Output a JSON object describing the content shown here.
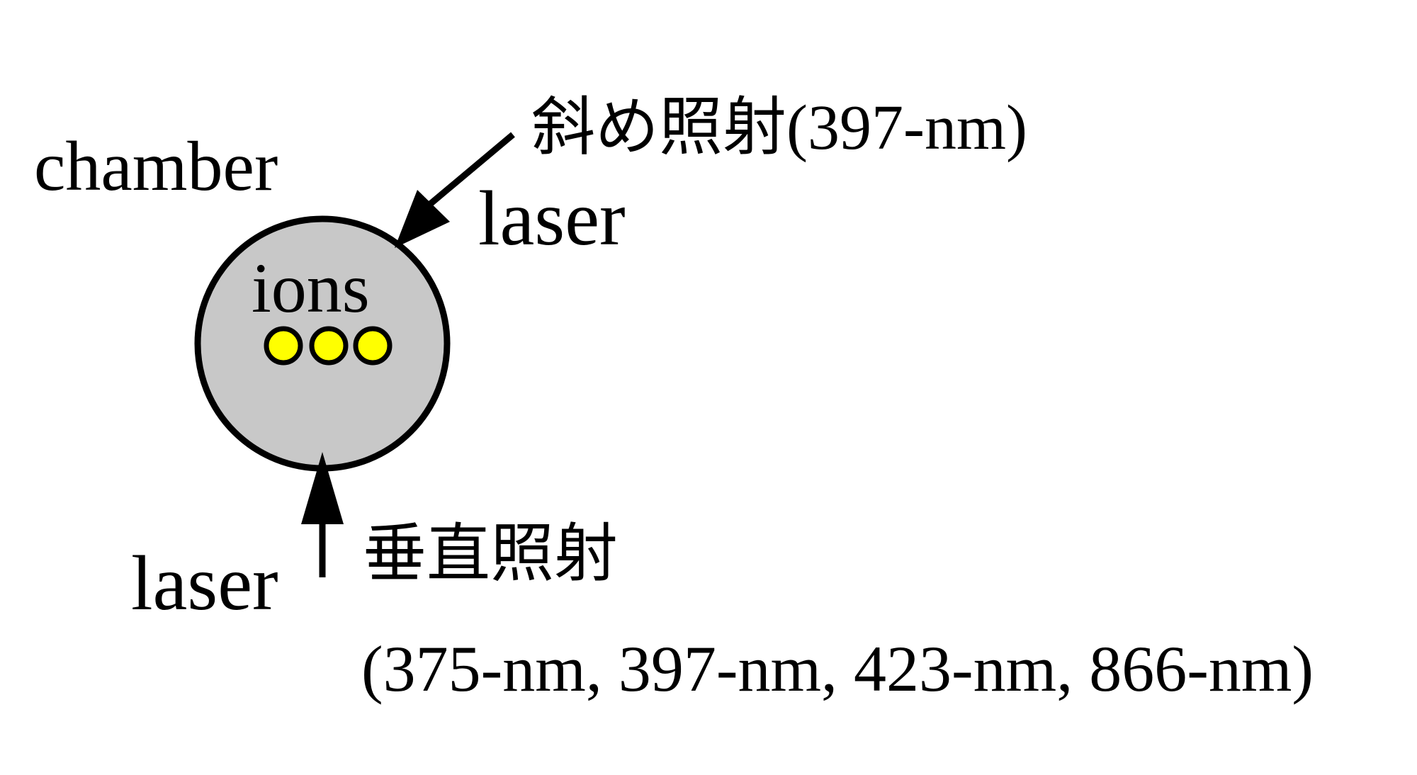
{
  "labels": {
    "chamber": "chamber",
    "ions": "ions",
    "oblique_title": "斜め照射(397-nm)",
    "oblique_laser": "laser",
    "vertical_title": "垂直照射",
    "vertical_laser": "laser",
    "wavelengths": "(375-nm, 397-nm, 423-nm, 866-nm)"
  },
  "ions": {
    "count": 3,
    "fill_color": "#ffff00",
    "outline_color": "#000000"
  },
  "colors": {
    "chamber_fill": "#c8c8c8",
    "outline": "#000000",
    "background": "#ffffff"
  }
}
